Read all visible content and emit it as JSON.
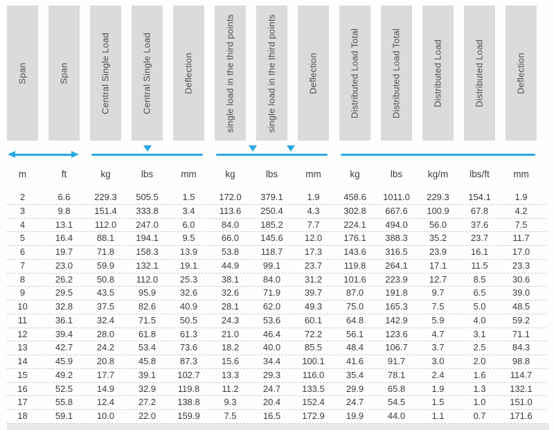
{
  "colors": {
    "accent_blue": "#29a8e0",
    "header_box_gray": "#dcdbd9",
    "header_text": "#4f4f51",
    "data_text": "#3a3a3c",
    "row_divider": "#cbcbc9",
    "bottom_strip": "#e9e8e6"
  },
  "table": {
    "columns": [
      {
        "label": "Span",
        "unit": "m"
      },
      {
        "label": "Span",
        "unit": "ft"
      },
      {
        "label": "Central Single Load",
        "unit": "kg"
      },
      {
        "label": "Central Single Load",
        "unit": "lbs"
      },
      {
        "label": "Deflection",
        "unit": "mm"
      },
      {
        "label": "single load in the third points",
        "unit": "kg"
      },
      {
        "label": "single load in the third points",
        "unit": "lbs"
      },
      {
        "label": "Deflection",
        "unit": "mm"
      },
      {
        "label": "Distributed Load Total",
        "unit": "kg"
      },
      {
        "label": "Distributed Load Total",
        "unit": "lbs"
      },
      {
        "label": "Distributed Load",
        "unit": "kg/m"
      },
      {
        "label": "Distributed Load",
        "unit": "lbs/ft"
      },
      {
        "label": "Deflection",
        "unit": "mm"
      }
    ],
    "groups": [
      {
        "name": "span",
        "cols": [
          1,
          2
        ],
        "indicator": "double-arrow",
        "markers": []
      },
      {
        "name": "central-single-load",
        "cols": [
          3,
          5
        ],
        "indicator": "line",
        "markers": [
          0.5
        ]
      },
      {
        "name": "single-load-third-points",
        "cols": [
          6,
          8
        ],
        "indicator": "line",
        "markers": [
          0.333,
          0.667
        ]
      },
      {
        "name": "distributed-load",
        "cols": [
          9,
          13
        ],
        "indicator": "line",
        "markers": []
      }
    ],
    "rows": [
      [
        "2",
        "6.6",
        "229.3",
        "505.5",
        "1.5",
        "172.0",
        "379.1",
        "1.9",
        "458.6",
        "1011.0",
        "229.3",
        "154.1",
        "1.9"
      ],
      [
        "3",
        "9.8",
        "151.4",
        "333.8",
        "3.4",
        "113.6",
        "250.4",
        "4.3",
        "302.8",
        "667.6",
        "100.9",
        "67.8",
        "4.2"
      ],
      [
        "4",
        "13.1",
        "112.0",
        "247.0",
        "6.0",
        "84.0",
        "185.2",
        "7.7",
        "224.1",
        "494.0",
        "56.0",
        "37.6",
        "7.5"
      ],
      [
        "5",
        "16.4",
        "88.1",
        "194.1",
        "9.5",
        "66.0",
        "145.6",
        "12.0",
        "176.1",
        "388.3",
        "35.2",
        "23.7",
        "11.7"
      ],
      [
        "6",
        "19.7",
        "71.8",
        "158.3",
        "13.9",
        "53.8",
        "118.7",
        "17.3",
        "143.6",
        "316.5",
        "23.9",
        "16.1",
        "17.0"
      ],
      [
        "7",
        "23.0",
        "59.9",
        "132.1",
        "19.1",
        "44.9",
        "99.1",
        "23.7",
        "119.8",
        "264.1",
        "17.1",
        "11.5",
        "23.3"
      ],
      [
        "8",
        "26.2",
        "50.8",
        "112.0",
        "25.3",
        "38.1",
        "84.0",
        "31.2",
        "101.6",
        "223.9",
        "12.7",
        "8.5",
        "30.6"
      ],
      [
        "9",
        "29.5",
        "43.5",
        "95.9",
        "32.6",
        "32.6",
        "71.9",
        "39.7",
        "87.0",
        "191.8",
        "9.7",
        "6.5",
        "39.0"
      ],
      [
        "10",
        "32.8",
        "37.5",
        "82.6",
        "40.9",
        "28.1",
        "62.0",
        "49.3",
        "75.0",
        "165.3",
        "7.5",
        "5.0",
        "48.5"
      ],
      [
        "11",
        "36.1",
        "32.4",
        "71.5",
        "50.5",
        "24.3",
        "53.6",
        "60.1",
        "64.8",
        "142.9",
        "5.9",
        "4.0",
        "59.2"
      ],
      [
        "12",
        "39.4",
        "28.0",
        "61.8",
        "61.3",
        "21.0",
        "46.4",
        "72.2",
        "56.1",
        "123.6",
        "4.7",
        "3.1",
        "71.1"
      ],
      [
        "13",
        "42.7",
        "24.2",
        "53.4",
        "73.6",
        "18.2",
        "40.0",
        "85.5",
        "48.4",
        "106.7",
        "3.7",
        "2.5",
        "84.3"
      ],
      [
        "14",
        "45.9",
        "20.8",
        "45.8",
        "87.3",
        "15.6",
        "34.4",
        "100.1",
        "41.6",
        "91.7",
        "3.0",
        "2.0",
        "98.8"
      ],
      [
        "15",
        "49.2",
        "17.7",
        "39.1",
        "102.7",
        "13.3",
        "29.3",
        "116.0",
        "35.4",
        "78.1",
        "2.4",
        "1.6",
        "114.7"
      ],
      [
        "16",
        "52.5",
        "14.9",
        "32.9",
        "119.8",
        "11.2",
        "24.7",
        "133.5",
        "29.9",
        "65.8",
        "1.9",
        "1.3",
        "132.1"
      ],
      [
        "17",
        "55.8",
        "12.4",
        "27.2",
        "138.8",
        "9.3",
        "20.4",
        "152.4",
        "24.7",
        "54.5",
        "1.5",
        "1.0",
        "151.0"
      ],
      [
        "18",
        "59.1",
        "10.0",
        "22.0",
        "159.9",
        "7.5",
        "16.5",
        "172.9",
        "19.9",
        "44.0",
        "1.1",
        "0.7",
        "171.6"
      ]
    ]
  }
}
